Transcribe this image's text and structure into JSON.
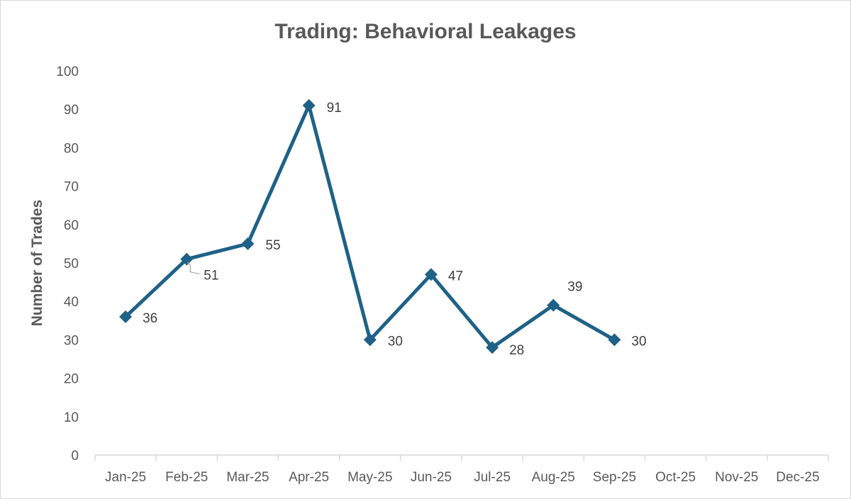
{
  "chart_data": {
    "type": "line",
    "title": "Trading: Behavioral Leakages",
    "xlabel": "",
    "ylabel": "Number of Trades",
    "ylim": [
      0,
      100
    ],
    "yticks": [
      0,
      10,
      20,
      30,
      40,
      50,
      60,
      70,
      80,
      90,
      100
    ],
    "categories": [
      "Jan-25",
      "Feb-25",
      "Mar-25",
      "Apr-25",
      "May-25",
      "Jun-25",
      "Jul-25",
      "Aug-25",
      "Sep-25",
      "Oct-25",
      "Nov-25",
      "Dec-25"
    ],
    "series": [
      {
        "name": "Number of Trades",
        "values": [
          36,
          51,
          55,
          91,
          30,
          47,
          28,
          39,
          30,
          null,
          null,
          null
        ],
        "color": "#1f6186",
        "marker": "diamond",
        "data_labels": true
      }
    ],
    "grid": false,
    "legend": "none"
  }
}
